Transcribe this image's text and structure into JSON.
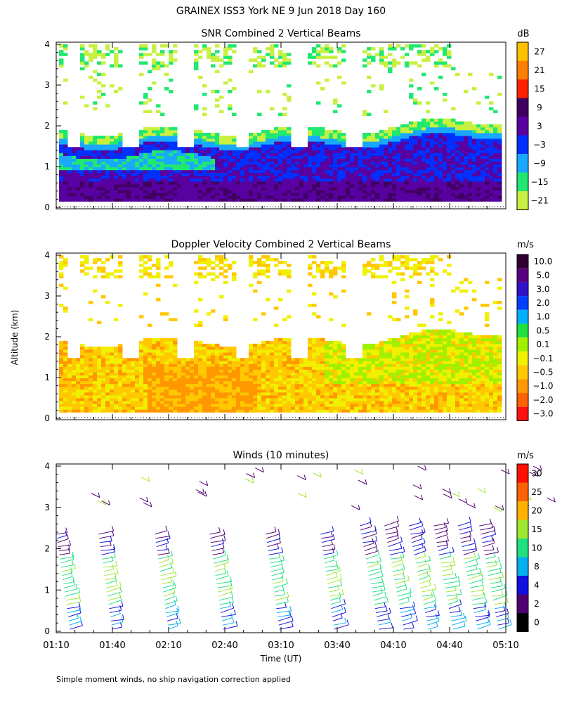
{
  "figure": {
    "title": "GRAINEX ISS3 York NE   9 Jun 2018 Day 160",
    "ylabel": "Altitude (km)",
    "xlabel": "Time (UT)",
    "footnote": "Simple moment winds, no ship navigation correction applied",
    "x_ticks": [
      "01:10",
      "01:40",
      "02:10",
      "02:40",
      "03:10",
      "03:40",
      "04:10",
      "04:40",
      "05:10"
    ],
    "y_ticks": [
      "0",
      "1",
      "2",
      "3",
      "4"
    ]
  },
  "chart_data": [
    {
      "type": "heatmap",
      "title": "SNR Combined 2 Vertical Beams",
      "xlabel": "Time (UT)",
      "ylabel": "Altitude (km)",
      "ylim": [
        0,
        4
      ],
      "x_range": [
        "01:10",
        "05:10"
      ],
      "colorbar": {
        "unit": "dB",
        "labels": [
          "27",
          "21",
          "15",
          "9",
          "3",
          "−3",
          "−9",
          "−15",
          "−21"
        ],
        "colors": [
          "#ffc000",
          "#ff8000",
          "#ff2000",
          "#400060",
          "#5800a0",
          "#0030ff",
          "#18a8ff",
          "#20e870",
          "#c8f040"
        ]
      }
    },
    {
      "type": "heatmap",
      "title": "Doppler Velocity Combined 2 Vertical Beams",
      "xlabel": "Time (UT)",
      "ylabel": "Altitude (km)",
      "ylim": [
        0,
        4
      ],
      "x_range": [
        "01:10",
        "05:10"
      ],
      "colorbar": {
        "unit": "m/s",
        "labels": [
          "10.0",
          "5.0",
          "3.0",
          "2.0",
          "1.0",
          "0.5",
          "0.1",
          "−0.1",
          "−0.5",
          "−1.0",
          "−2.0",
          "−3.0"
        ],
        "colors": [
          "#300030",
          "#580080",
          "#3010c8",
          "#0040ff",
          "#00b0ff",
          "#20e040",
          "#a0f000",
          "#f0f000",
          "#ffc800",
          "#ff9800",
          "#ff6000",
          "#ff1010"
        ]
      }
    },
    {
      "type": "scatter",
      "title": "Winds (10 minutes)",
      "xlabel": "Time (UT)",
      "ylabel": "Altitude (km)",
      "ylim": [
        0,
        4
      ],
      "x_range": [
        "01:10",
        "05:10"
      ],
      "colorbar": {
        "unit": "m/s",
        "labels": [
          "30",
          "25",
          "20",
          "15",
          "10",
          "8",
          "4",
          "2",
          "0"
        ],
        "colors": [
          "#ff1000",
          "#ff6000",
          "#ffb000",
          "#a0e830",
          "#20e080",
          "#00b0f0",
          "#1010e0",
          "#500070",
          "#000000"
        ]
      }
    }
  ]
}
